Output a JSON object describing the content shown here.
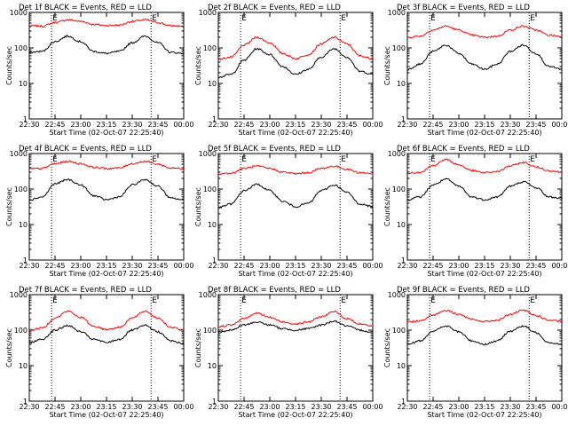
{
  "chart_data": [
    {
      "type": "line",
      "title": "Det 1f BLACK = Events, RED = LLD",
      "ylabel": "Counts/sec",
      "xlabel": "Start Time (02-Oct-07 22:25:40)",
      "xticks": [
        "22:30",
        "22:45",
        "23:00",
        "23:15",
        "23:30",
        "23:45",
        "00:00"
      ],
      "yticks": [
        "1",
        "10",
        "100",
        "1000"
      ],
      "yscale": "log",
      "ylim": [
        1,
        1000
      ],
      "xlim": [
        "22:30",
        "00:00"
      ],
      "markers": [
        {
          "label": "E",
          "x": "22:43"
        },
        {
          "label": "E",
          "x": "23:41"
        }
      ],
      "series": [
        {
          "color": "#ff0000",
          "values": [
            420,
            410,
            520,
            620,
            560,
            460,
            430,
            440,
            560,
            620,
            520,
            420,
            410
          ]
        },
        {
          "color": "#000000",
          "values": [
            75,
            80,
            150,
            215,
            150,
            80,
            70,
            80,
            140,
            215,
            140,
            75,
            70
          ]
        }
      ]
    },
    {
      "type": "line",
      "title": "Det 2f BLACK = Events, RED = LLD",
      "ylabel": "Counts/sec",
      "xlabel": "Start Time (02-Oct-07 22:25:40)",
      "xticks": [
        "22:30",
        "22:45",
        "23:00",
        "23:15",
        "23:30",
        "23:45",
        "00:00"
      ],
      "yticks": [
        "1",
        "10",
        "100",
        "1000"
      ],
      "yscale": "log",
      "ylim": [
        1,
        1000
      ],
      "xlim": [
        "22:30",
        "00:00"
      ],
      "markers": [
        {
          "label": "E",
          "x": "22:43"
        },
        {
          "label": "E",
          "x": "23:41"
        }
      ],
      "series": [
        {
          "color": "#ff0000",
          "values": [
            48,
            55,
            120,
            200,
            140,
            70,
            50,
            65,
            130,
            200,
            130,
            60,
            50
          ]
        },
        {
          "color": "#000000",
          "values": [
            15,
            18,
            45,
            95,
            65,
            30,
            18,
            25,
            55,
            95,
            55,
            22,
            18
          ]
        }
      ]
    },
    {
      "type": "line",
      "title": "Det 3f BLACK = Events, RED = LLD",
      "ylabel": "Counts/sec",
      "xlabel": "Start Time (02-Oct-07 22:25:40)",
      "xticks": [
        "22:30",
        "22:45",
        "23:00",
        "23:15",
        "23:30",
        "23:45",
        "00:00"
      ],
      "yticks": [
        "1",
        "10",
        "100",
        "1000"
      ],
      "yscale": "log",
      "ylim": [
        1,
        1000
      ],
      "xlim": [
        "22:30",
        "00:00"
      ],
      "markers": [
        {
          "label": "E",
          "x": "22:43"
        },
        {
          "label": "E",
          "x": "23:41"
        }
      ],
      "series": [
        {
          "color": "#ff0000",
          "values": [
            200,
            215,
            320,
            410,
            320,
            230,
            200,
            215,
            320,
            410,
            320,
            230,
            210
          ]
        },
        {
          "color": "#000000",
          "values": [
            25,
            35,
            80,
            120,
            70,
            35,
            25,
            35,
            80,
            120,
            70,
            30,
            25
          ]
        }
      ]
    },
    {
      "type": "line",
      "title": "Det 4f BLACK = Events, RED = LLD",
      "ylabel": "Counts/sec",
      "xlabel": "Start Time (02-Oct-07 22:25:40)",
      "xticks": [
        "22:30",
        "22:45",
        "23:00",
        "23:15",
        "23:30",
        "23:45",
        "00:00"
      ],
      "yticks": [
        "1",
        "10",
        "100",
        "1000"
      ],
      "yscale": "log",
      "ylim": [
        1,
        1000
      ],
      "xlim": [
        "22:30",
        "00:00"
      ],
      "markers": [
        {
          "label": "E",
          "x": "22:43"
        },
        {
          "label": "E",
          "x": "23:41"
        }
      ],
      "series": [
        {
          "color": "#ff0000",
          "values": [
            370,
            380,
            520,
            600,
            520,
            410,
            380,
            390,
            520,
            600,
            500,
            390,
            380
          ]
        },
        {
          "color": "#000000",
          "values": [
            50,
            60,
            140,
            185,
            130,
            65,
            50,
            60,
            130,
            185,
            120,
            55,
            50
          ]
        }
      ]
    },
    {
      "type": "line",
      "title": "Det 5f BLACK = Events, RED = LLD",
      "ylabel": "Counts/sec",
      "xlabel": "Start Time (02-Oct-07 22:25:40)",
      "xticks": [
        "22:30",
        "22:45",
        "23:00",
        "23:15",
        "23:30",
        "23:45",
        "00:00"
      ],
      "yticks": [
        "1",
        "10",
        "100",
        "1000"
      ],
      "yscale": "log",
      "ylim": [
        1,
        1000
      ],
      "xlim": [
        "22:30",
        "00:00"
      ],
      "markers": [
        {
          "label": "E",
          "x": "22:43"
        },
        {
          "label": "E",
          "x": "23:41"
        }
      ],
      "series": [
        {
          "color": "#ff0000",
          "values": [
            270,
            280,
            380,
            440,
            380,
            300,
            270,
            290,
            380,
            440,
            360,
            290,
            270
          ]
        },
        {
          "color": "#000000",
          "values": [
            30,
            38,
            90,
            135,
            90,
            45,
            32,
            40,
            90,
            130,
            80,
            38,
            32
          ]
        }
      ]
    },
    {
      "type": "line",
      "title": "Det 6f BLACK = Events, RED = LLD",
      "ylabel": "Counts/sec",
      "xlabel": "Start Time (02-Oct-07 22:25:40)",
      "xticks": [
        "22:30",
        "22:45",
        "23:00",
        "23:15",
        "23:30",
        "23:45",
        "00:00"
      ],
      "yticks": [
        "1",
        "10",
        "100",
        "1000"
      ],
      "yscale": "log",
      "ylim": [
        1,
        1000
      ],
      "xlim": [
        "22:30",
        "00:00"
      ],
      "markers": [
        {
          "label": "E",
          "x": "22:43"
        },
        {
          "label": "E",
          "x": "23:41"
        }
      ],
      "series": [
        {
          "color": "#ff0000",
          "values": [
            280,
            300,
            460,
            680,
            480,
            330,
            290,
            310,
            450,
            560,
            420,
            330,
            300
          ]
        },
        {
          "color": "#000000",
          "values": [
            50,
            60,
            130,
            190,
            120,
            60,
            50,
            60,
            120,
            160,
            110,
            60,
            55
          ]
        }
      ]
    },
    {
      "type": "line",
      "title": "Det 7f BLACK = Events, RED = LLD",
      "ylabel": "Counts/sec",
      "xlabel": "Start Time (02-Oct-07 22:25:40)",
      "xticks": [
        "22:30",
        "22:45",
        "23:00",
        "23:15",
        "23:30",
        "23:45",
        "00:00"
      ],
      "yticks": [
        "1",
        "10",
        "100",
        "1000"
      ],
      "yscale": "log",
      "ylim": [
        1,
        1000
      ],
      "xlim": [
        "22:30",
        "00:00"
      ],
      "markers": [
        {
          "label": "E",
          "x": "22:43"
        },
        {
          "label": "E",
          "x": "23:41"
        }
      ],
      "series": [
        {
          "color": "#ff0000",
          "values": [
            100,
            115,
            220,
            340,
            230,
            130,
            105,
            120,
            220,
            340,
            220,
            120,
            100
          ]
        },
        {
          "color": "#000000",
          "values": [
            45,
            55,
            100,
            135,
            90,
            55,
            45,
            55,
            100,
            135,
            90,
            50,
            42
          ]
        }
      ]
    },
    {
      "type": "line",
      "title": "Det 8f BLACK = Events, RED = LLD",
      "ylabel": "Counts/sec",
      "xlabel": "Start Time (02-Oct-07 22:25:40)",
      "xticks": [
        "22:30",
        "22:45",
        "23:00",
        "23:15",
        "23:30",
        "23:45",
        "00:00"
      ],
      "yticks": [
        "1",
        "10",
        "100",
        "1000"
      ],
      "yscale": "log",
      "ylim": [
        1,
        1000
      ],
      "xlim": [
        "22:30",
        "00:00"
      ],
      "markers": [
        {
          "label": "E",
          "x": "22:43"
        },
        {
          "label": "E",
          "x": "23:41"
        }
      ],
      "series": [
        {
          "color": "#ff0000",
          "values": [
            125,
            140,
            220,
            300,
            230,
            170,
            150,
            170,
            240,
            330,
            210,
            150,
            130
          ]
        },
        {
          "color": "#000000",
          "values": [
            88,
            100,
            140,
            170,
            140,
            110,
            100,
            110,
            140,
            180,
            130,
            100,
            88
          ]
        }
      ]
    },
    {
      "type": "line",
      "title": "Det 9f BLACK = Events, RED = LLD",
      "ylabel": "Counts/sec",
      "xlabel": "Start Time (02-Oct-07 22:25:40)",
      "xticks": [
        "22:30",
        "22:45",
        "23:00",
        "23:15",
        "23:30",
        "23:45",
        "00:00"
      ],
      "yticks": [
        "1",
        "10",
        "100",
        "1000"
      ],
      "yscale": "log",
      "ylim": [
        1,
        1000
      ],
      "xlim": [
        "22:30",
        "00:00"
      ],
      "markers": [
        {
          "label": "E",
          "x": "22:43"
        },
        {
          "label": "E",
          "x": "23:41"
        }
      ],
      "series": [
        {
          "color": "#ff0000",
          "values": [
            170,
            185,
            270,
            360,
            280,
            200,
            175,
            190,
            280,
            360,
            260,
            190,
            175
          ]
        },
        {
          "color": "#000000",
          "values": [
            40,
            50,
            95,
            130,
            90,
            50,
            40,
            50,
            95,
            130,
            85,
            45,
            40
          ]
        }
      ]
    }
  ]
}
